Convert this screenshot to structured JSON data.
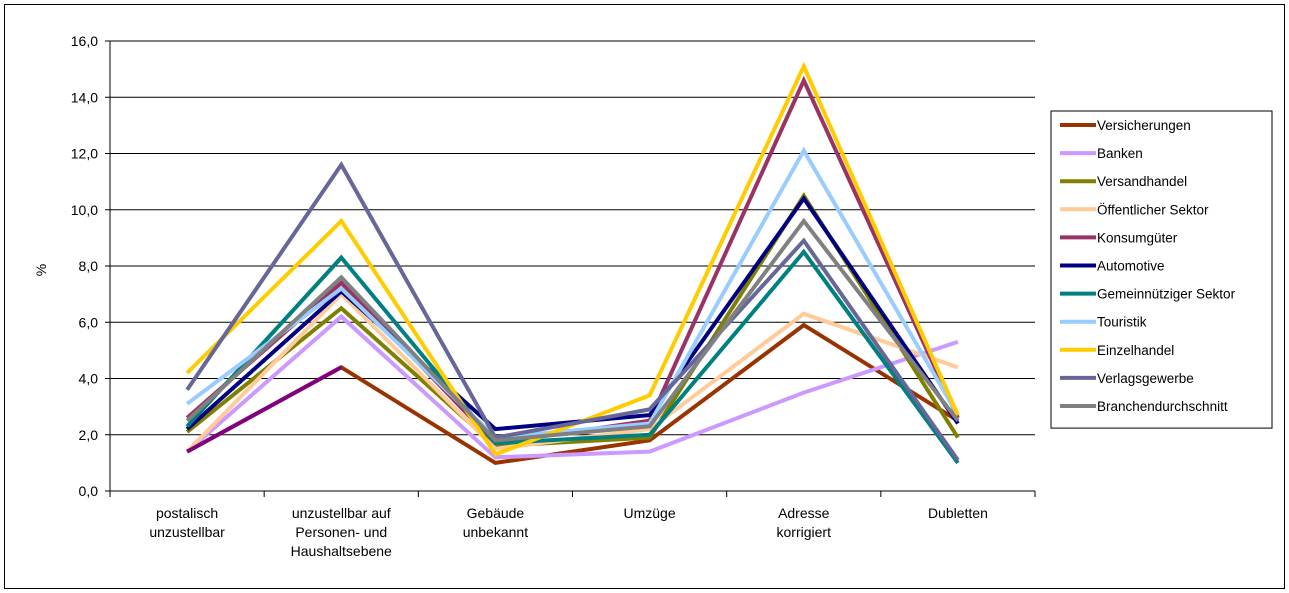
{
  "chart_data": {
    "type": "line",
    "title": "",
    "xlabel": "",
    "ylabel": "%",
    "ylim": [
      0,
      16
    ],
    "ytick_step": 2,
    "ytick_labels": [
      "0,0",
      "2,0",
      "4,0",
      "6,0",
      "8,0",
      "10,0",
      "12,0",
      "14,0",
      "16,0"
    ],
    "grid": "horizontal",
    "legend_position": "right",
    "categories": [
      [
        "postalisch",
        "unzustellbar"
      ],
      [
        "unzustellbar auf",
        "Personen- und",
        "Haushaltsebene"
      ],
      [
        "Gebäude",
        "unbekannt"
      ],
      [
        "Umzüge"
      ],
      [
        "Adresse",
        "korrigiert"
      ],
      [
        "Dubletten"
      ]
    ],
    "series": [
      {
        "name": "Versicherungen",
        "color": "#993300",
        "values": [
          1.4,
          4.4,
          1.0,
          1.8,
          5.9,
          2.5
        ]
      },
      {
        "name": "Banken",
        "color": "#cc99ff",
        "values": [
          1.4,
          6.2,
          1.2,
          1.4,
          3.5,
          5.3
        ]
      },
      {
        "name": "Versandhandel",
        "color": "#808000",
        "values": [
          2.1,
          6.5,
          1.6,
          1.9,
          10.5,
          1.9
        ]
      },
      {
        "name": "Öffentlicher Sektor",
        "color": "#ffcc99",
        "values": [
          1.4,
          7.0,
          1.5,
          2.2,
          6.3,
          4.4
        ]
      },
      {
        "name": "Konsumgüter",
        "color": "#993366",
        "values": [
          2.6,
          7.4,
          1.7,
          2.5,
          14.6,
          2.6
        ]
      },
      {
        "name": "Automotive",
        "color": "#000080",
        "values": [
          2.2,
          7.1,
          2.2,
          2.7,
          10.4,
          2.4
        ]
      },
      {
        "name": "Gemeinnütziger Sektor",
        "color": "#008080",
        "values": [
          2.3,
          8.3,
          1.7,
          2.0,
          8.5,
          1.0
        ]
      },
      {
        "name": "Touristik",
        "color": "#99ccff",
        "values": [
          3.1,
          7.2,
          1.9,
          2.4,
          12.1,
          2.7
        ]
      },
      {
        "name": "Einzelhandel",
        "color": "#ffcc00",
        "values": [
          4.2,
          9.6,
          1.3,
          3.4,
          15.1,
          2.7
        ]
      },
      {
        "name": "Verlagsgewerbe",
        "color": "#666699",
        "values": [
          3.6,
          11.6,
          1.9,
          2.9,
          8.9,
          1.1
        ]
      },
      {
        "name": "Branchendurchschnitt",
        "color": "#808080",
        "values": [
          2.5,
          7.6,
          1.8,
          2.3,
          9.6,
          2.5
        ]
      }
    ],
    "extra_segment": {
      "color": "#800080",
      "from": [
        0,
        1.4
      ],
      "to": [
        1,
        4.4
      ]
    }
  }
}
